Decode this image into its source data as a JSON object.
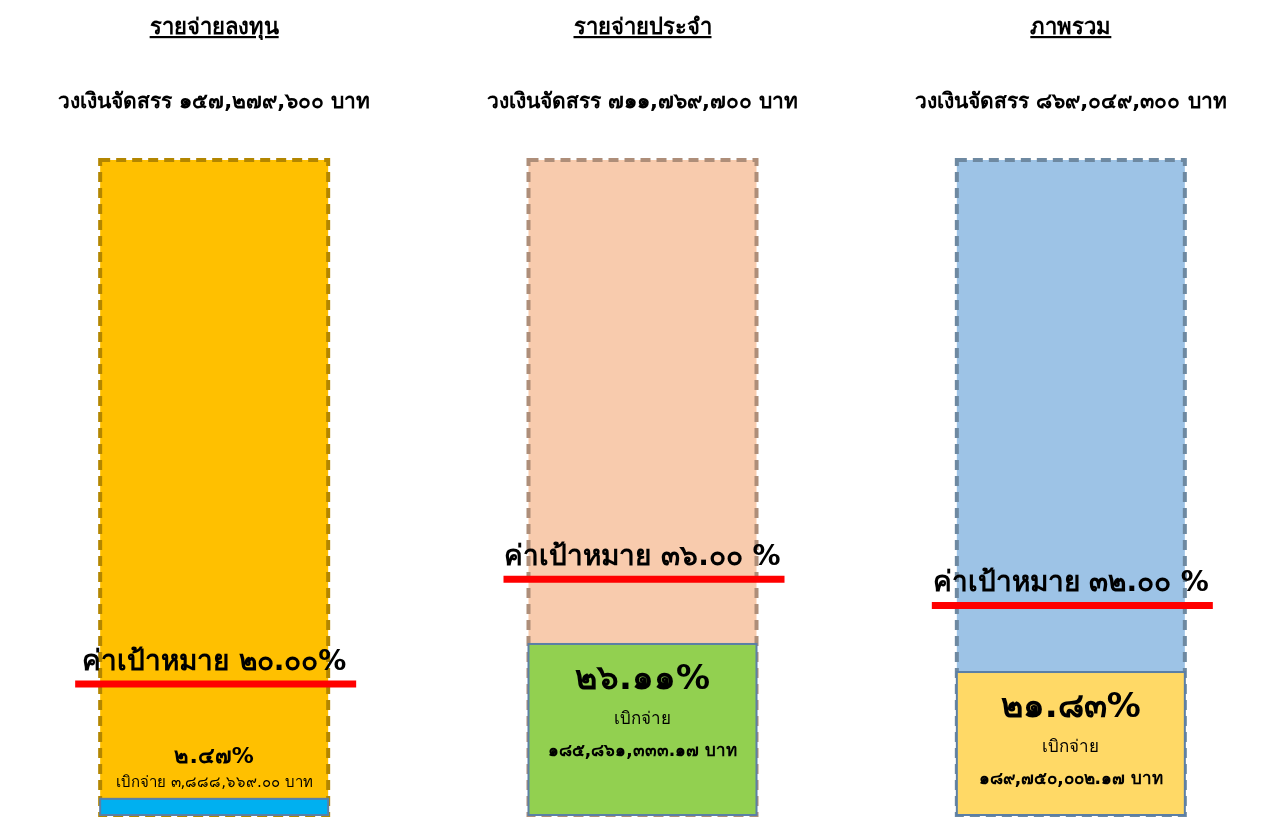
{
  "chart_data": [
    {
      "type": "bar",
      "title": "รายจ่ายลงทุน",
      "subtitle": "วงเงินจัดสรร ๑๕๗,๒๗๙,๖๐๐ บาท",
      "categories": [
        null
      ],
      "ylim": [
        0,
        100
      ],
      "tick_labels": false,
      "series": [
        {
          "color": "#00b0f0",
          "values": [
            2.47
          ],
          "value_labels": [
            "๒.๔๗%"
          ]
        }
      ],
      "annotations": [
        "เบิกจ่าย ๓,๘๘๘,๖๖๙.๐๐ บาท"
      ],
      "bands": [
        {
          "axis": "y",
          "from": 0,
          "to": 100,
          "color": "#ffc000"
        }
      ],
      "ref_lines": [
        {
          "axis": "y",
          "value": 20,
          "label": "ค่าเป้าหมาย ๒๐.๐๐%",
          "color": "#ff0000"
        }
      ]
    },
    {
      "type": "bar",
      "title": "รายจ่ายประจำ",
      "subtitle": "วงเงินจัดสรร ๗๑๑,๗๖๙,๗๐๐ บาท",
      "categories": [
        null
      ],
      "ylim": [
        0,
        100
      ],
      "tick_labels": false,
      "series": [
        {
          "color": "#92d050",
          "values": [
            26.11
          ],
          "value_labels": [
            "๒๖.๑๑%"
          ]
        }
      ],
      "annotations": [
        "เบิกจ่าย",
        "๑๘๕,๘๖๑,๓๓๓.๑๗ บาท"
      ],
      "bands": [
        {
          "axis": "y",
          "from": 0,
          "to": 100,
          "color": "#f8cbad"
        }
      ],
      "ref_lines": [
        {
          "axis": "y",
          "value": 36,
          "label": "ค่าเป้าหมาย ๓๖.๐๐ %",
          "color": "#ff0000"
        }
      ]
    },
    {
      "type": "bar",
      "title": "ภาพรวม",
      "subtitle": "วงเงินจัดสรร ๘๖๙,๐๔๙,๓๐๐ บาท",
      "categories": [
        null
      ],
      "ylim": [
        0,
        100
      ],
      "tick_labels": false,
      "series": [
        {
          "color": "#ffd966",
          "values": [
            21.83
          ],
          "value_labels": [
            "๒๑.๘๓%"
          ]
        }
      ],
      "annotations": [
        "เบิกจ่าย",
        "๑๘๙,๗๕๐,๐๐๒.๑๗ บาท"
      ],
      "bands": [
        {
          "axis": "y",
          "from": 0,
          "to": 100,
          "color": "#9dc3e6"
        }
      ],
      "ref_lines": [
        {
          "axis": "y",
          "value": 32,
          "label": "ค่าเป้าหมาย ๓๒.๐๐ %",
          "color": "#ff0000"
        }
      ]
    }
  ]
}
